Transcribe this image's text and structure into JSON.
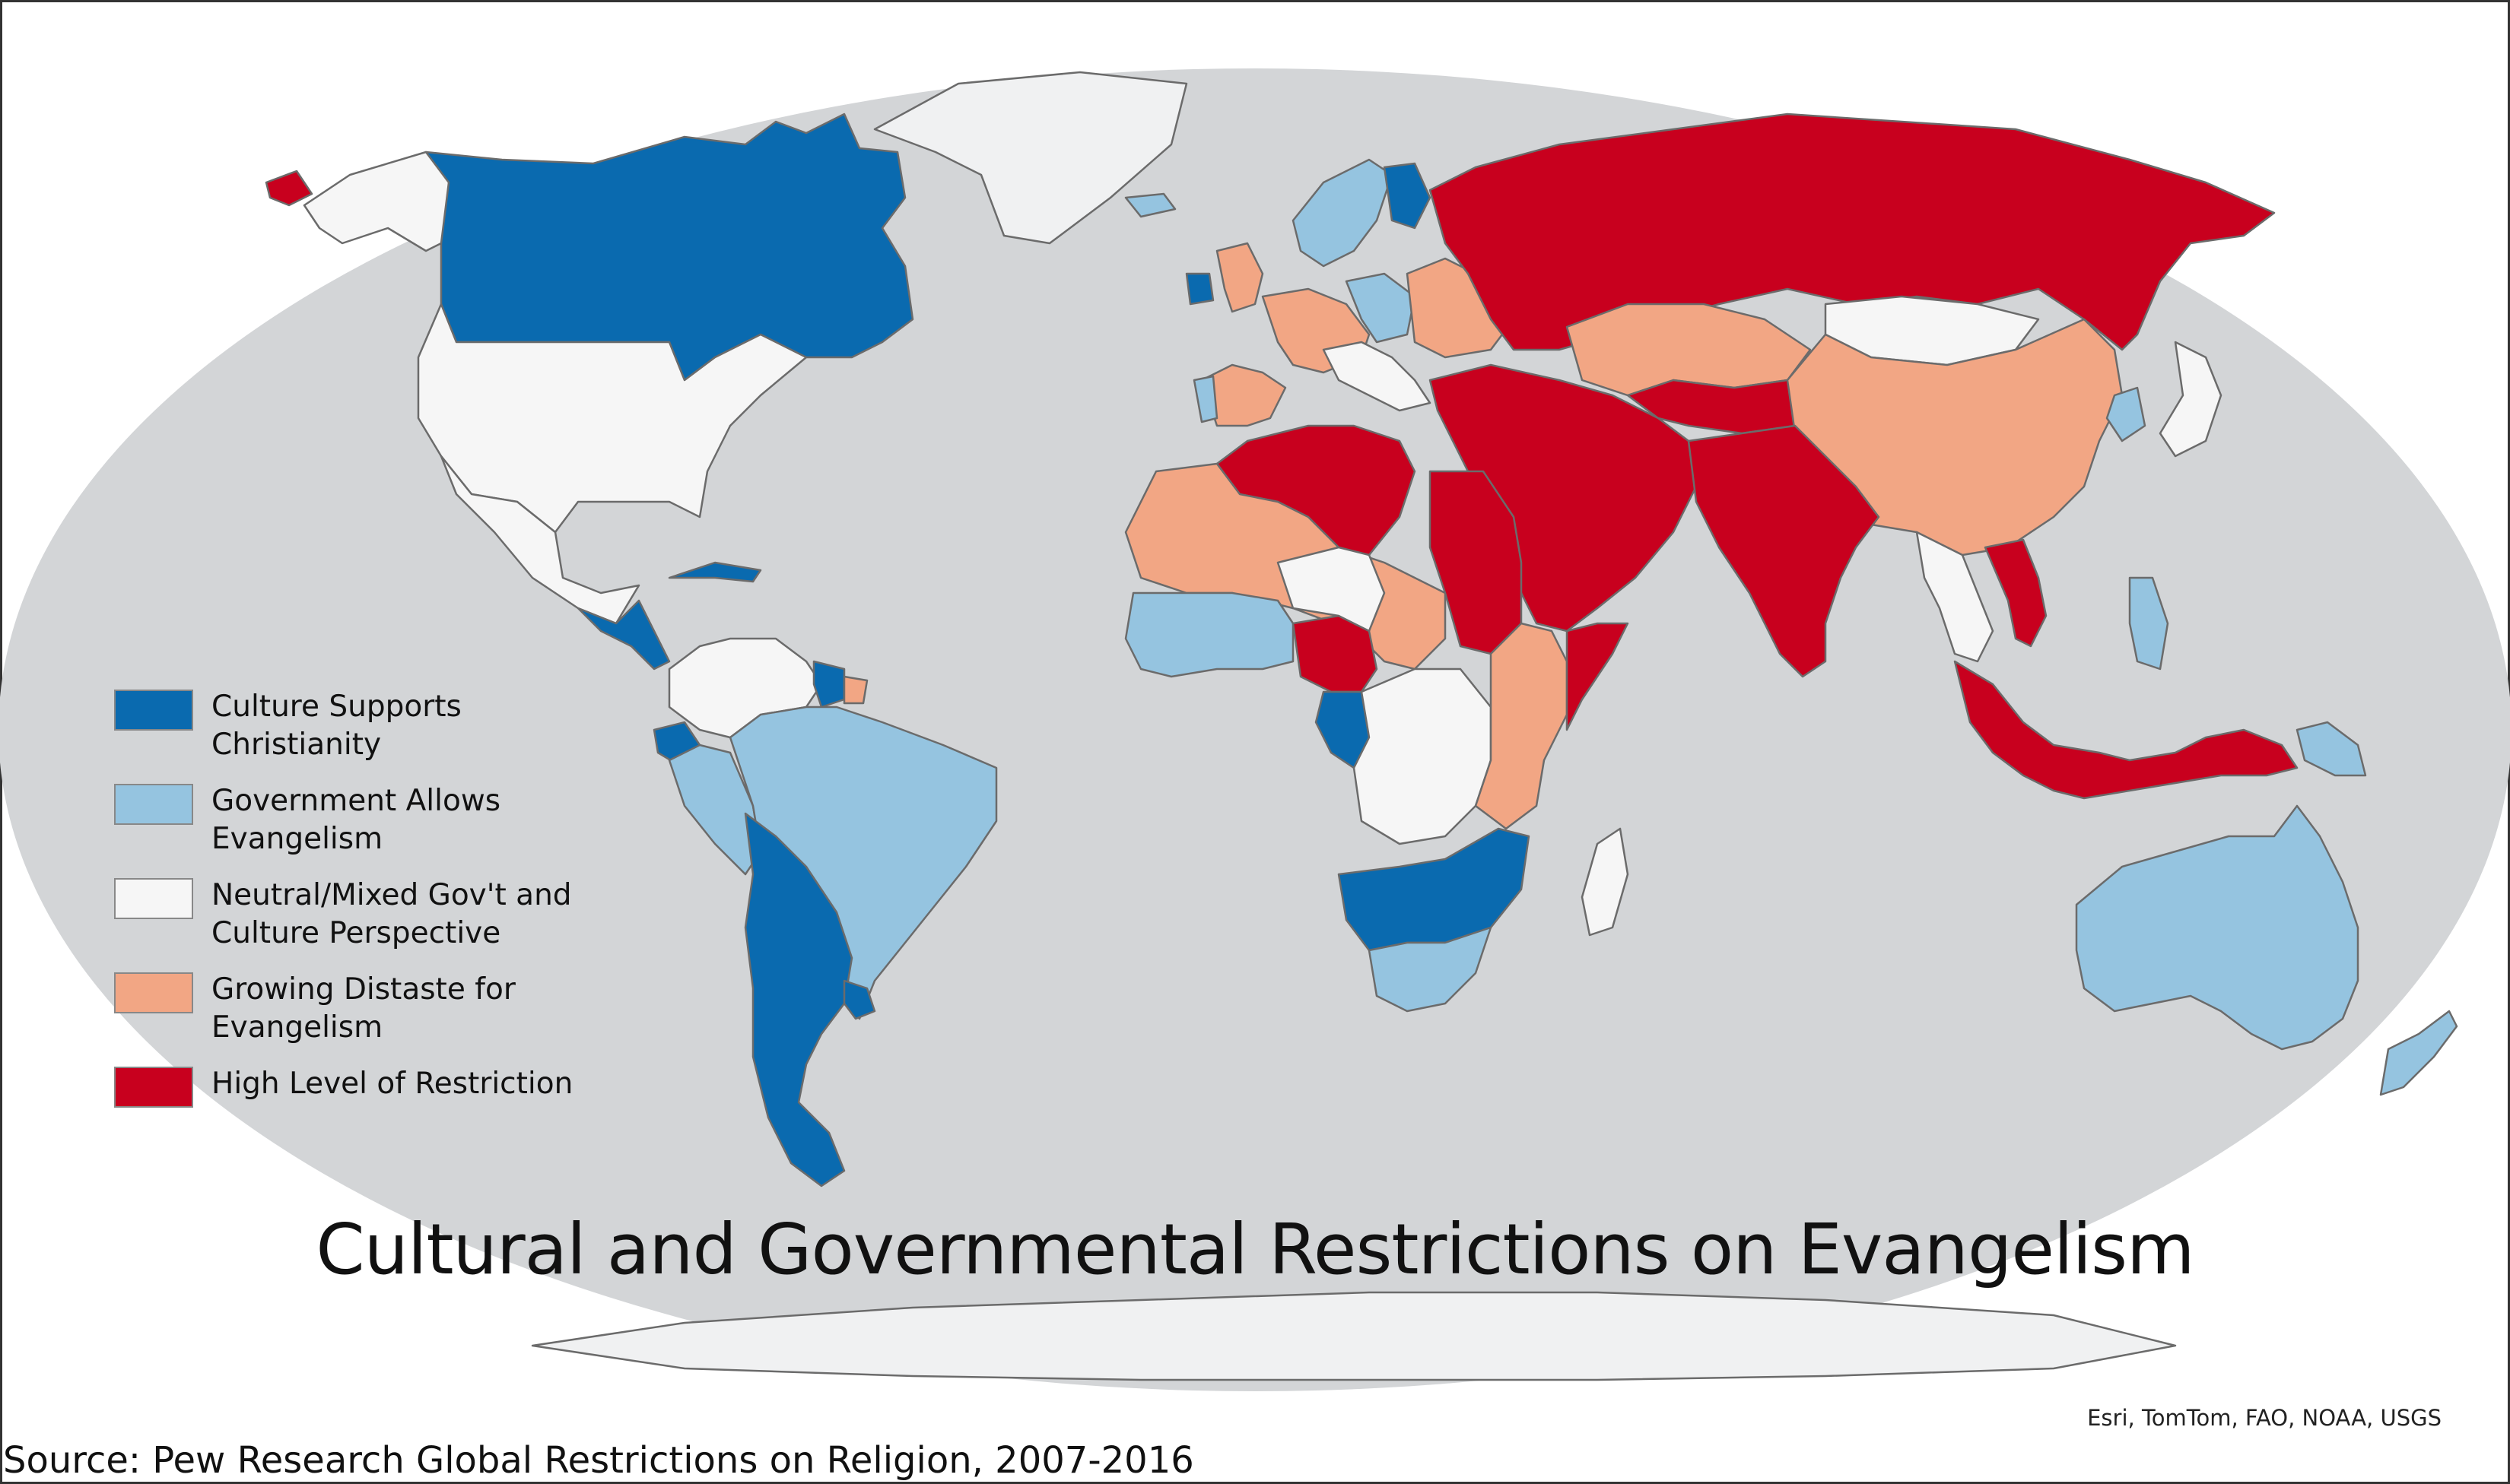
{
  "title": "Cultural and Governmental Restrictions on Evangelism",
  "source": "Source: Pew Research Global Restrictions on Religion, 2007-2016",
  "credits": "Esri, TomTom, FAO, NOAA, USGS",
  "colors": {
    "ocean": "#d3d5d7",
    "land_nodata": "#f0f1f2",
    "border": "#6b6b6b"
  },
  "legend": [
    {
      "key": "supports",
      "label_line1": "Culture Supports",
      "label_line2": "Christianity",
      "color": "#0a6aaf"
    },
    {
      "key": "allows",
      "label_line1": "Government Allows",
      "label_line2": "Evangelism",
      "color": "#95c4e0"
    },
    {
      "key": "neutral",
      "label_line1": "Neutral/Mixed Gov't and",
      "label_line2": "Culture Perspective",
      "color": "#f6f6f6"
    },
    {
      "key": "distaste",
      "label_line1": "Growing Distaste for",
      "label_line2": "Evangelism",
      "color": "#f2a684"
    },
    {
      "key": "restricted",
      "label_line1": "High Level of Restriction",
      "label_line2": "",
      "color": "#c8001e"
    }
  ],
  "regions": [
    {
      "name": "canada",
      "category": "supports"
    },
    {
      "name": "alaska",
      "category": "neutral"
    },
    {
      "name": "chukotka-tip",
      "category": "restricted"
    },
    {
      "name": "greenland",
      "category": "nodata"
    },
    {
      "name": "united-states",
      "category": "neutral"
    },
    {
      "name": "mexico",
      "category": "neutral"
    },
    {
      "name": "central-america",
      "category": "supports"
    },
    {
      "name": "caribbean",
      "category": "supports"
    },
    {
      "name": "venezuela-colombia",
      "category": "neutral"
    },
    {
      "name": "guyana-suriname",
      "category": "supports"
    },
    {
      "name": "french-guiana",
      "category": "distaste"
    },
    {
      "name": "ecuador",
      "category": "supports"
    },
    {
      "name": "peru",
      "category": "allows"
    },
    {
      "name": "brazil",
      "category": "allows"
    },
    {
      "name": "bolivia-paraguay-chile-argentina",
      "category": "supports"
    },
    {
      "name": "uruguay",
      "category": "supports"
    },
    {
      "name": "iberia",
      "category": "distaste"
    },
    {
      "name": "portugal",
      "category": "allows"
    },
    {
      "name": "france-germany",
      "category": "distaste"
    },
    {
      "name": "uk",
      "category": "distaste"
    },
    {
      "name": "ireland",
      "category": "supports"
    },
    {
      "name": "scandinavia",
      "category": "allows"
    },
    {
      "name": "finland",
      "category": "supports"
    },
    {
      "name": "central-europe",
      "category": "allows"
    },
    {
      "name": "eastern-europe",
      "category": "distaste"
    },
    {
      "name": "italy-balkans",
      "category": "neutral"
    },
    {
      "name": "iceland",
      "category": "allows"
    },
    {
      "name": "russia",
      "category": "restricted"
    },
    {
      "name": "kazakhstan",
      "category": "distaste"
    },
    {
      "name": "central-asia",
      "category": "restricted"
    },
    {
      "name": "mongolia",
      "category": "neutral"
    },
    {
      "name": "china",
      "category": "distaste"
    },
    {
      "name": "japan",
      "category": "neutral"
    },
    {
      "name": "korea",
      "category": "allows"
    },
    {
      "name": "middle-east",
      "category": "restricted"
    },
    {
      "name": "south-asia",
      "category": "restricted"
    },
    {
      "name": "southeast-asia",
      "category": "neutral"
    },
    {
      "name": "vietnam",
      "category": "restricted"
    },
    {
      "name": "philippines",
      "category": "allows"
    },
    {
      "name": "indonesia",
      "category": "restricted"
    },
    {
      "name": "papua-new-guinea",
      "category": "allows"
    },
    {
      "name": "australia",
      "category": "allows"
    },
    {
      "name": "new-zealand",
      "category": "allows"
    },
    {
      "name": "algeria-libya",
      "category": "restricted"
    },
    {
      "name": "sahara-north-africa",
      "category": "distaste"
    },
    {
      "name": "egypt-sudan",
      "category": "restricted"
    },
    {
      "name": "west-africa",
      "category": "allows"
    },
    {
      "name": "nigeria",
      "category": "restricted"
    },
    {
      "name": "niger-chad",
      "category": "neutral"
    },
    {
      "name": "central-africa-west",
      "category": "supports"
    },
    {
      "name": "central-africa",
      "category": "neutral"
    },
    {
      "name": "east-africa",
      "category": "distaste"
    },
    {
      "name": "somalia",
      "category": "restricted"
    },
    {
      "name": "southern-africa-supports",
      "category": "supports"
    },
    {
      "name": "south-africa",
      "category": "allows"
    },
    {
      "name": "madagascar",
      "category": "neutral"
    },
    {
      "name": "antarctica",
      "category": "nodata"
    }
  ]
}
